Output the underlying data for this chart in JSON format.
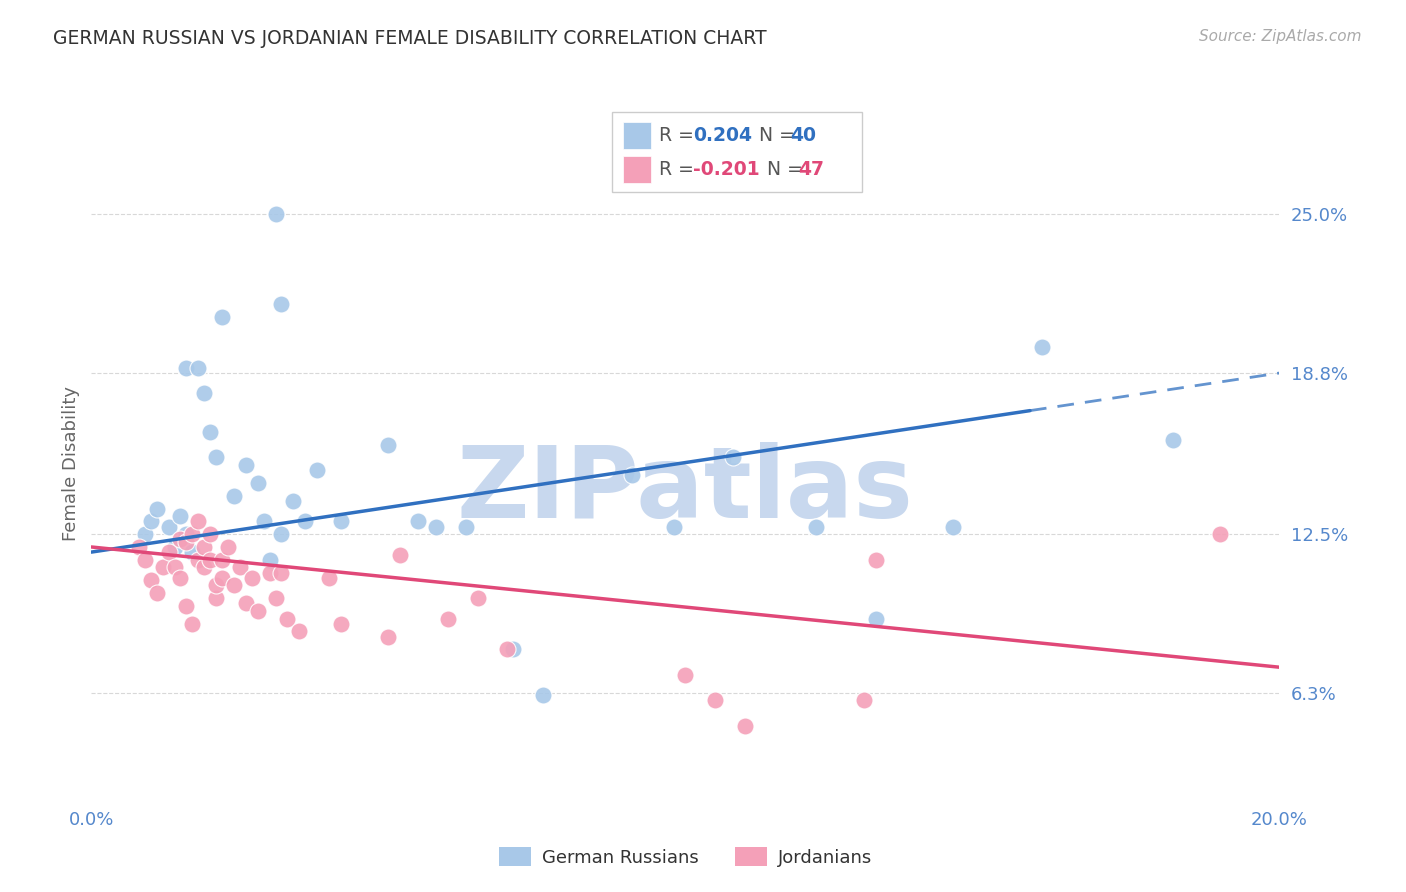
{
  "title": "GERMAN RUSSIAN VS JORDANIAN FEMALE DISABILITY CORRELATION CHART",
  "source": "Source: ZipAtlas.com",
  "ylabel": "Female Disability",
  "xlim": [
    0.0,
    0.2
  ],
  "ylim": [
    0.02,
    0.285
  ],
  "yticks": [
    0.063,
    0.125,
    0.188,
    0.25
  ],
  "ytick_labels": [
    "6.3%",
    "12.5%",
    "18.8%",
    "25.0%"
  ],
  "xticks": [
    0.0,
    0.04,
    0.08,
    0.12,
    0.16,
    0.2
  ],
  "xtick_labels": [
    "0.0%",
    "",
    "",
    "",
    "",
    "20.0%"
  ],
  "legend_labels": [
    "German Russians",
    "Jordanians"
  ],
  "series1_color": "#a8c8e8",
  "series2_color": "#f4a0b8",
  "trendline1_color": "#3070c0",
  "trendline2_color": "#e04878",
  "background_color": "#ffffff",
  "grid_color": "#d8d8d8",
  "title_color": "#333333",
  "axis_label_color": "#666666",
  "tick_label_color": "#5588cc",
  "watermark_color": "#c8d8ee",
  "blue_x": [
    0.016,
    0.022,
    0.031,
    0.032,
    0.009,
    0.01,
    0.011,
    0.013,
    0.014,
    0.015,
    0.016,
    0.017,
    0.018,
    0.019,
    0.02,
    0.021,
    0.024,
    0.026,
    0.028,
    0.029,
    0.03,
    0.032,
    0.034,
    0.036,
    0.038,
    0.042,
    0.05,
    0.055,
    0.058,
    0.063,
    0.071,
    0.076,
    0.091,
    0.098,
    0.108,
    0.122,
    0.132,
    0.145,
    0.16,
    0.182
  ],
  "blue_y": [
    0.19,
    0.21,
    0.25,
    0.215,
    0.125,
    0.13,
    0.135,
    0.128,
    0.12,
    0.132,
    0.125,
    0.118,
    0.19,
    0.18,
    0.165,
    0.155,
    0.14,
    0.152,
    0.145,
    0.13,
    0.115,
    0.125,
    0.138,
    0.13,
    0.15,
    0.13,
    0.16,
    0.13,
    0.128,
    0.128,
    0.08,
    0.062,
    0.148,
    0.128,
    0.155,
    0.128,
    0.092,
    0.128,
    0.198,
    0.162
  ],
  "pink_x": [
    0.008,
    0.009,
    0.01,
    0.011,
    0.012,
    0.013,
    0.014,
    0.015,
    0.015,
    0.016,
    0.016,
    0.017,
    0.017,
    0.018,
    0.018,
    0.019,
    0.019,
    0.02,
    0.02,
    0.021,
    0.021,
    0.022,
    0.022,
    0.023,
    0.024,
    0.025,
    0.026,
    0.027,
    0.028,
    0.03,
    0.031,
    0.032,
    0.033,
    0.035,
    0.04,
    0.042,
    0.05,
    0.052,
    0.06,
    0.065,
    0.07,
    0.1,
    0.105,
    0.11,
    0.13,
    0.132,
    0.19
  ],
  "pink_y": [
    0.12,
    0.115,
    0.107,
    0.102,
    0.112,
    0.118,
    0.112,
    0.108,
    0.123,
    0.097,
    0.122,
    0.09,
    0.125,
    0.115,
    0.13,
    0.12,
    0.112,
    0.125,
    0.115,
    0.1,
    0.105,
    0.108,
    0.115,
    0.12,
    0.105,
    0.112,
    0.098,
    0.108,
    0.095,
    0.11,
    0.1,
    0.11,
    0.092,
    0.087,
    0.108,
    0.09,
    0.085,
    0.117,
    0.092,
    0.1,
    0.08,
    0.07,
    0.06,
    0.05,
    0.06,
    0.115,
    0.125
  ],
  "trend1_x": [
    0.0,
    0.2
  ],
  "trend1_y": [
    0.118,
    0.188
  ],
  "trend1_solid_end": 0.158,
  "trend2_x": [
    0.0,
    0.2
  ],
  "trend2_y": [
    0.12,
    0.073
  ]
}
